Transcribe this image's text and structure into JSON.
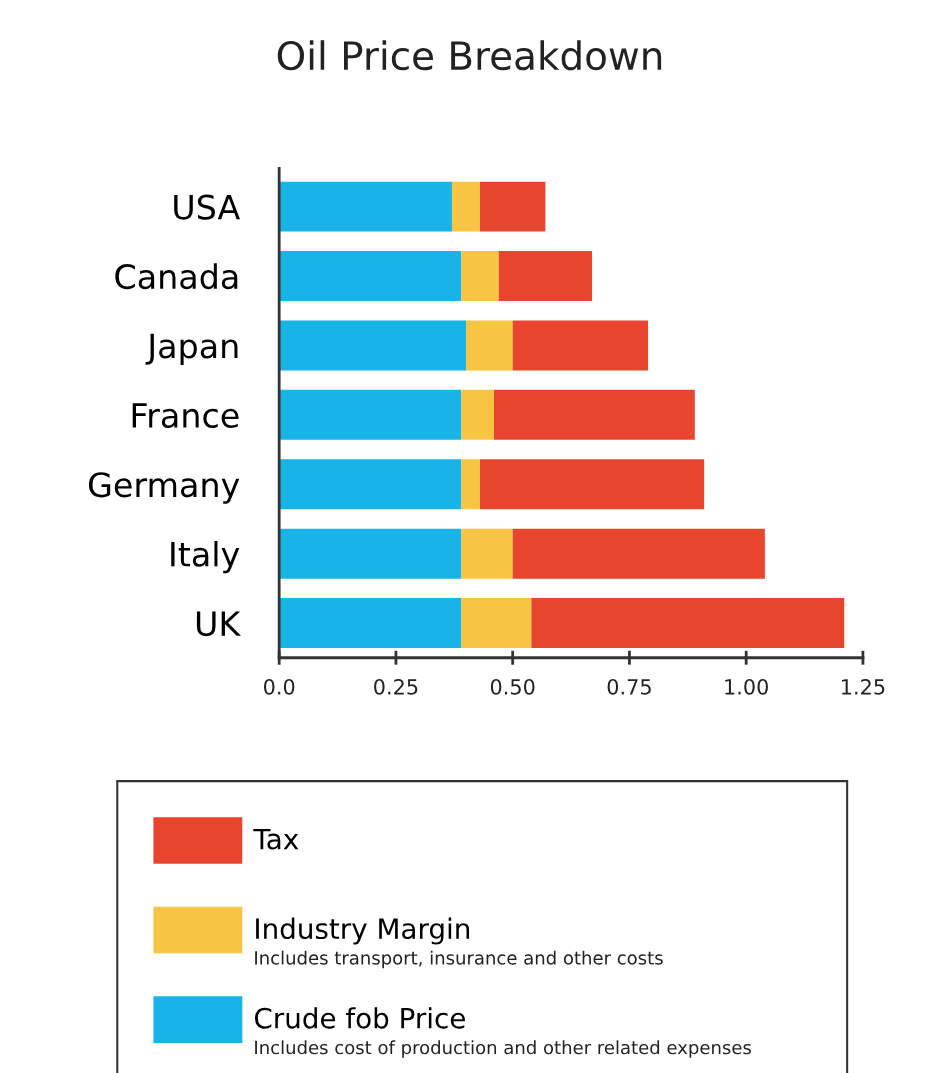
{
  "chart_data": {
    "type": "bar",
    "orientation": "horizontal",
    "stacked": true,
    "title": "Oil Price Breakdown",
    "categories": [
      "USA",
      "Canada",
      "Japan",
      "France",
      "Germany",
      "Italy",
      "UK"
    ],
    "series": [
      {
        "name": "Crude fob Price",
        "color": "#18b4e8",
        "values": [
          0.37,
          0.39,
          0.4,
          0.39,
          0.39,
          0.39,
          0.39
        ]
      },
      {
        "name": "Industry Margin",
        "color": "#f8c443",
        "values": [
          0.06,
          0.08,
          0.1,
          0.07,
          0.04,
          0.11,
          0.15
        ]
      },
      {
        "name": "Tax",
        "color": "#e8452e",
        "values": [
          0.14,
          0.2,
          0.29,
          0.43,
          0.48,
          0.54,
          0.67
        ]
      }
    ],
    "xlim": [
      0,
      1.25
    ],
    "xticks": [
      {
        "value": 0,
        "label": "0.0"
      },
      0.25,
      {
        "value": 0.5,
        "label": "0.50"
      },
      0.75,
      {
        "value": 1.0,
        "label": "1.00"
      },
      1.25
    ],
    "legend": "bottom",
    "grid": false,
    "annotations": [
      "Includes transport, insurance and other costs",
      "Includes cost of production and other related expenses"
    ]
  }
}
